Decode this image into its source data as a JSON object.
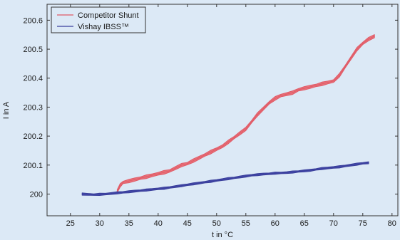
{
  "colors": {
    "background": "#dce9f6",
    "plot_area": "#dce9f6",
    "competitor": "#e05a66",
    "competitor_fill": "#e8737c",
    "vishay": "#3a3f9c",
    "vishay_fill": "#4a4fb0"
  },
  "chart_data": {
    "type": "line",
    "title": "",
    "xlabel": "t in °C",
    "ylabel": "I in A",
    "xlim": [
      21,
      81
    ],
    "ylim": [
      199.925,
      200.655
    ],
    "xticks": [
      25,
      30,
      35,
      40,
      45,
      50,
      55,
      60,
      65,
      70,
      75,
      80
    ],
    "yticks": [
      200,
      200.1,
      200.2,
      200.3,
      200.4,
      200.5,
      200.6
    ],
    "ytick_labels": [
      "200",
      "200.1",
      "200.2",
      "200.3",
      "200.4",
      "200.5",
      "200.6"
    ],
    "grid": false,
    "legend_position": "top-left",
    "series": [
      {
        "name": "Competitor Shunt",
        "color": "#e05a66",
        "x": [
          33,
          33.5,
          34,
          35,
          36,
          37,
          38,
          39,
          40,
          41,
          42,
          43,
          44,
          45,
          46,
          47,
          48,
          49,
          50,
          51,
          52,
          53,
          54,
          55,
          56,
          57,
          58,
          59,
          60,
          61,
          62,
          63,
          64,
          65,
          66,
          67,
          68,
          69,
          70,
          71,
          72,
          73,
          74,
          75,
          76,
          77
        ],
        "y": [
          200.01,
          200.03,
          200.04,
          200.045,
          200.05,
          200.055,
          200.06,
          200.065,
          200.07,
          200.075,
          200.08,
          200.09,
          200.1,
          200.105,
          200.115,
          200.125,
          200.135,
          200.145,
          200.155,
          200.165,
          200.18,
          200.195,
          200.21,
          200.225,
          200.25,
          200.275,
          200.295,
          200.315,
          200.33,
          200.34,
          200.345,
          200.35,
          200.36,
          200.365,
          200.37,
          200.375,
          200.38,
          200.385,
          200.39,
          200.41,
          200.44,
          200.47,
          200.5,
          200.52,
          200.535,
          200.545
        ],
        "band": 0.008
      },
      {
        "name": "Vishay IBSS™",
        "color": "#3a3f9c",
        "x": [
          27,
          28,
          29,
          30,
          31,
          32,
          33,
          34,
          35,
          36,
          37,
          38,
          39,
          40,
          41,
          42,
          43,
          44,
          45,
          46,
          47,
          48,
          49,
          50,
          51,
          52,
          53,
          54,
          55,
          56,
          57,
          58,
          59,
          60,
          61,
          62,
          63,
          64,
          65,
          66,
          67,
          68,
          69,
          70,
          71,
          72,
          73,
          74,
          75,
          76
        ],
        "y": [
          200,
          199.999,
          199.998,
          199.999,
          200,
          200.002,
          200.004,
          200.006,
          200.008,
          200.01,
          200.012,
          200.014,
          200.016,
          200.018,
          200.02,
          200.023,
          200.026,
          200.029,
          200.032,
          200.035,
          200.038,
          200.041,
          200.044,
          200.047,
          200.05,
          200.053,
          200.056,
          200.059,
          200.062,
          200.065,
          200.067,
          200.069,
          200.07,
          200.072,
          200.073,
          200.074,
          200.076,
          200.078,
          200.08,
          200.082,
          200.085,
          200.088,
          200.09,
          200.092,
          200.094,
          200.097,
          200.1,
          200.103,
          200.106,
          200.108
        ],
        "band": 0.005
      }
    ]
  }
}
